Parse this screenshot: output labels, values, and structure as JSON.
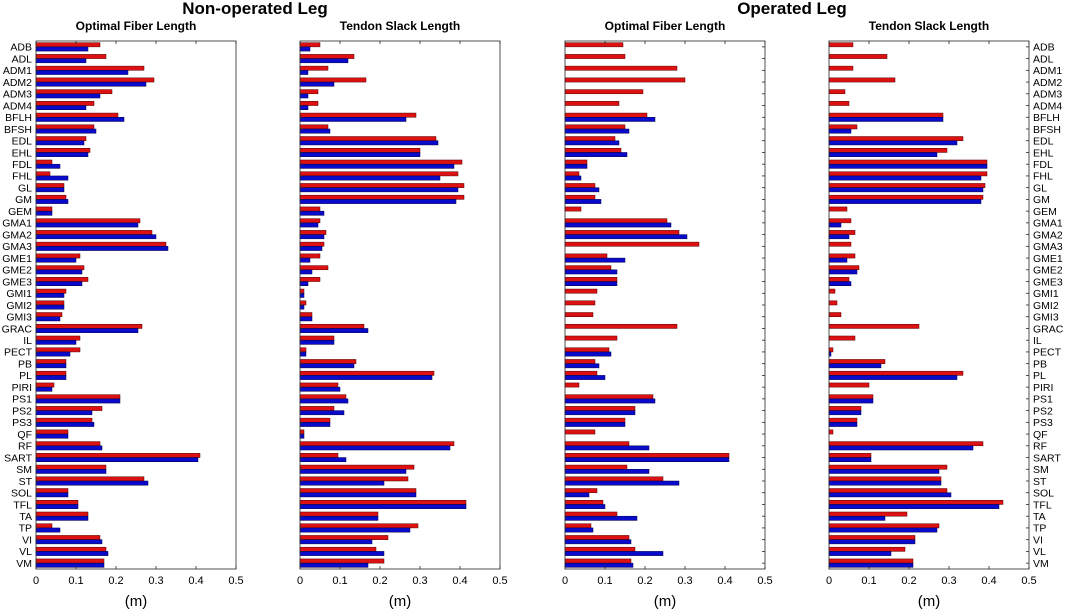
{
  "titles": {
    "left_group": "Non-operated Leg",
    "right_group": "Operated Leg"
  },
  "colors": {
    "red": "#dd1111",
    "blue": "#0a0acc",
    "red_stroke": "#550000",
    "blue_stroke": "#000044"
  },
  "chart_data": {
    "type": "bar",
    "orientation": "horizontal",
    "categories": [
      "ADB",
      "ADL",
      "ADM1",
      "ADM2",
      "ADM3",
      "ADM4",
      "BFLH",
      "BFSH",
      "EDL",
      "EHL",
      "FDL",
      "FHL",
      "GL",
      "GM",
      "GEM",
      "GMA1",
      "GMA2",
      "GMA3",
      "GME1",
      "GME2",
      "GME3",
      "GMI1",
      "GMI2",
      "GMI3",
      "GRAC",
      "IL",
      "PECT",
      "PB",
      "PL",
      "PIRI",
      "PS1",
      "PS2",
      "PS3",
      "QF",
      "RF",
      "SART",
      "SM",
      "ST",
      "SOL",
      "TFL",
      "TA",
      "TP",
      "VI",
      "VL",
      "VM"
    ],
    "xlim": [
      0,
      0.5
    ],
    "xticks": [
      "0",
      "0.1",
      "0.2",
      "0.3",
      "0.4",
      "0.5"
    ],
    "xlabel": "(m)",
    "panels": [
      {
        "group": "Non-operated Leg",
        "title": "Optimal Fiber Length",
        "series": [
          {
            "name": "red",
            "values": [
              0.16,
              0.175,
              0.27,
              0.295,
              0.19,
              0.145,
              0.205,
              0.145,
              0.125,
              0.135,
              0.04,
              0.035,
              0.07,
              0.075,
              0.04,
              0.26,
              0.29,
              0.325,
              0.11,
              0.12,
              0.13,
              0.075,
              0.07,
              0.065,
              0.265,
              0.11,
              0.11,
              0.075,
              0.075,
              0.045,
              0.21,
              0.165,
              0.14,
              0.08,
              0.16,
              0.41,
              0.175,
              0.27,
              0.08,
              0.105,
              0.13,
              0.04,
              0.16,
              0.175,
              0.17
            ]
          },
          {
            "name": "blue",
            "values": [
              0.13,
              0.125,
              0.23,
              0.275,
              0.16,
              0.125,
              0.22,
              0.15,
              0.12,
              0.13,
              0.06,
              0.08,
              0.07,
              0.08,
              0.04,
              0.255,
              0.3,
              0.33,
              0.1,
              0.115,
              0.115,
              0.07,
              0.07,
              0.06,
              0.255,
              0.1,
              0.085,
              0.075,
              0.075,
              0.04,
              0.21,
              0.14,
              0.145,
              0.08,
              0.165,
              0.405,
              0.175,
              0.28,
              0.08,
              0.105,
              0.13,
              0.06,
              0.165,
              0.18,
              0.17
            ]
          }
        ]
      },
      {
        "group": "Non-operated Leg",
        "title": "Tendon Slack Length",
        "series": [
          {
            "name": "red",
            "values": [
              0.05,
              0.135,
              0.07,
              0.165,
              0.045,
              0.045,
              0.29,
              0.07,
              0.34,
              0.3,
              0.405,
              0.395,
              0.41,
              0.41,
              0.05,
              0.05,
              0.065,
              0.06,
              0.05,
              0.07,
              0.05,
              0.01,
              0.015,
              0.03,
              0.16,
              0.085,
              0.015,
              0.14,
              0.335,
              0.095,
              0.115,
              0.085,
              0.075,
              0.01,
              0.385,
              0.095,
              0.285,
              0.27,
              0.29,
              0.415,
              0.195,
              0.295,
              0.22,
              0.19,
              0.21
            ]
          },
          {
            "name": "blue",
            "values": [
              0.025,
              0.12,
              0.02,
              0.085,
              0.02,
              0.02,
              0.265,
              0.075,
              0.345,
              0.3,
              0.385,
              0.35,
              0.395,
              0.39,
              0.06,
              0.045,
              0.06,
              0.055,
              0.025,
              0.03,
              0.02,
              0.01,
              0.01,
              0.03,
              0.17,
              0.085,
              0.015,
              0.135,
              0.33,
              0.1,
              0.12,
              0.11,
              0.075,
              0.01,
              0.375,
              0.115,
              0.265,
              0.21,
              0.29,
              0.415,
              0.195,
              0.275,
              0.18,
              0.21,
              0.17
            ]
          }
        ]
      },
      {
        "group": "Operated Leg",
        "title": "Optimal Fiber Length",
        "series": [
          {
            "name": "red",
            "values": [
              0.145,
              0.15,
              0.28,
              0.3,
              0.195,
              0.135,
              0.205,
              0.15,
              0.125,
              0.14,
              0.055,
              0.035,
              0.075,
              0.075,
              0.04,
              0.255,
              0.285,
              0.335,
              0.105,
              0.115,
              0.13,
              0.08,
              0.075,
              0.07,
              0.28,
              0.13,
              0.11,
              0.075,
              0.08,
              0.035,
              0.22,
              0.175,
              0.15,
              0.075,
              0.16,
              0.41,
              0.155,
              0.245,
              0.08,
              0.095,
              0.13,
              0.065,
              0.16,
              0.175,
              0.165
            ]
          },
          {
            "name": "blue",
            "values": [
              0,
              0,
              0,
              0,
              0,
              0,
              0.225,
              0.16,
              0.135,
              0.155,
              0.055,
              0.04,
              0.085,
              0.09,
              0,
              0.265,
              0.305,
              0,
              0.15,
              0.13,
              0.13,
              0,
              0,
              0,
              0,
              0,
              0.115,
              0.085,
              0.1,
              0,
              0.225,
              0.175,
              0.15,
              0,
              0.21,
              0.41,
              0.21,
              0.285,
              0.06,
              0.1,
              0.18,
              0.07,
              0.165,
              0.245,
              0.17
            ]
          }
        ]
      },
      {
        "group": "Operated Leg",
        "title": "Tendon Slack Length",
        "series": [
          {
            "name": "red",
            "values": [
              0.06,
              0.145,
              0.06,
              0.165,
              0.04,
              0.05,
              0.285,
              0.07,
              0.335,
              0.295,
              0.395,
              0.395,
              0.39,
              0.385,
              0.045,
              0.055,
              0.065,
              0.055,
              0.065,
              0.075,
              0.05,
              0.015,
              0.02,
              0.03,
              0.225,
              0.065,
              0.01,
              0.14,
              0.335,
              0.1,
              0.11,
              0.08,
              0.07,
              0.01,
              0.385,
              0.105,
              0.295,
              0.28,
              0.295,
              0.435,
              0.195,
              0.275,
              0.215,
              0.19,
              0.21
            ]
          },
          {
            "name": "blue",
            "values": [
              0,
              0,
              0,
              0,
              0,
              0,
              0.285,
              0.055,
              0.32,
              0.27,
              0.395,
              0.38,
              0.385,
              0.38,
              0,
              0.03,
              0.05,
              0,
              0.045,
              0.07,
              0.055,
              0,
              0,
              0,
              0,
              0,
              0.005,
              0.13,
              0.32,
              0,
              0.11,
              0.08,
              0.07,
              0,
              0.36,
              0.105,
              0.275,
              0.28,
              0.305,
              0.425,
              0.14,
              0.27,
              0.215,
              0.155,
              0.21
            ]
          }
        ]
      }
    ]
  }
}
